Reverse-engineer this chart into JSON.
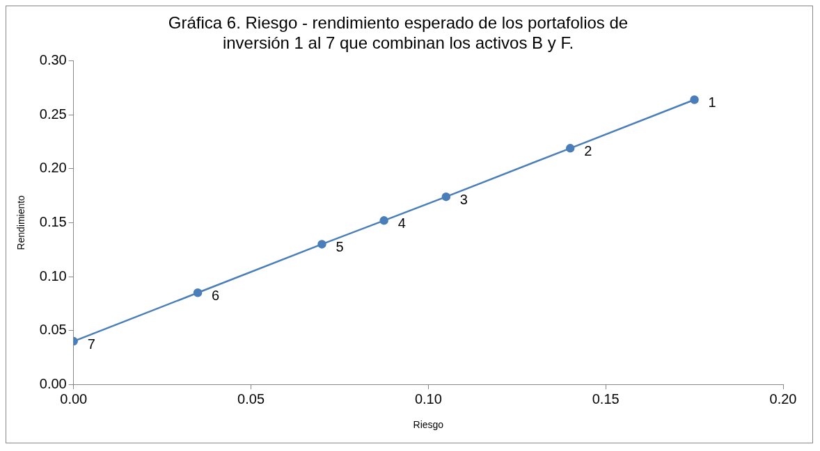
{
  "chart_data": {
    "type": "line",
    "title": "Gráfica 6. Riesgo - rendimiento esperado de los portafolios de inversión 1 al 7 que combinan los activos B y F.",
    "xlabel": "Riesgo",
    "ylabel": "Rendimiento",
    "x": [
      0.175,
      0.14,
      0.105,
      0.0875,
      0.07,
      0.035,
      0
    ],
    "series": [
      {
        "color": "#4a7ebb",
        "values": [
          0.264,
          0.219,
          0.174,
          0.152,
          0.13,
          0.085,
          0.04
        ]
      }
    ],
    "annotations": [
      {
        "text": "1",
        "x": 0.175,
        "y": 0.264
      },
      {
        "text": "2",
        "x": 0.14,
        "y": 0.219
      },
      {
        "text": "3",
        "x": 0.105,
        "y": 0.174
      },
      {
        "text": "4",
        "x": 0.0875,
        "y": 0.152
      },
      {
        "text": "5",
        "x": 0.07,
        "y": 0.13
      },
      {
        "text": "6",
        "x": 0.035,
        "y": 0.085
      },
      {
        "text": "7",
        "x": 0,
        "y": 0.04
      }
    ],
    "xlim": [
      0,
      0.2
    ],
    "xticks": [
      {
        "value": 0,
        "label": "0.00"
      },
      {
        "value": 0.05,
        "label": "0.05"
      },
      {
        "value": 0.1,
        "label": "0.10"
      },
      {
        "value": 0.15,
        "label": "0.15"
      },
      {
        "value": 0.2,
        "label": "0.20"
      }
    ],
    "ylim": [
      0,
      0.3
    ],
    "yticks": [
      {
        "value": 0,
        "label": "0.00"
      },
      {
        "value": 0.05,
        "label": "0.05"
      },
      {
        "value": 0.1,
        "label": "0.10"
      },
      {
        "value": 0.15,
        "label": "0.15"
      },
      {
        "value": 0.2,
        "label": "0.20"
      },
      {
        "value": 0.25,
        "label": "0.25"
      },
      {
        "value": 0.3,
        "label": "0.30"
      }
    ],
    "grid": false,
    "legend": false,
    "marker": "circle",
    "line_style": "solid"
  }
}
